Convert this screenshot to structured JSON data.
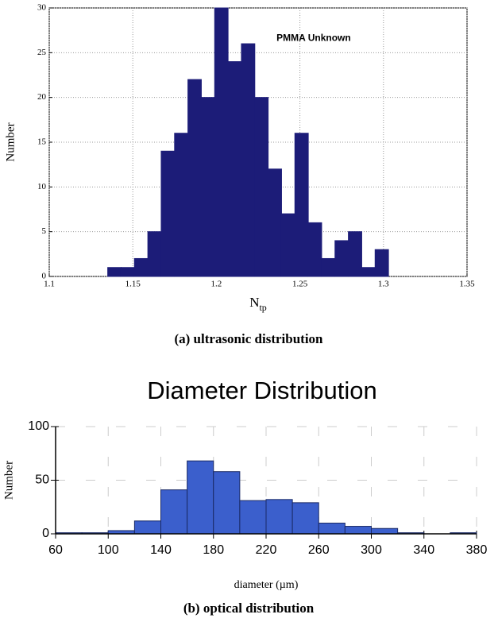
{
  "chart_data": [
    {
      "type": "histogram",
      "annotation": "PMMA Unknown",
      "x_label": "N",
      "x_label_subscript": "tp",
      "y_label": "Number",
      "caption": "(a) ultrasonic distribution",
      "bins": [
        1.135,
        1.143,
        1.151,
        1.159,
        1.167,
        1.175,
        1.183,
        1.191,
        1.199,
        1.207,
        1.215,
        1.223,
        1.231,
        1.239,
        1.247,
        1.255,
        1.263,
        1.271,
        1.279,
        1.287,
        1.295,
        1.303
      ],
      "values": [
        1,
        1,
        2,
        5,
        14,
        16,
        22,
        20,
        30,
        24,
        26,
        20,
        12,
        7,
        16,
        6,
        2,
        4,
        5,
        1,
        3
      ],
      "color": "#1c1c78",
      "xlim": [
        1.1,
        1.35
      ],
      "xticks": [
        1.1,
        1.15,
        1.2,
        1.25,
        1.3,
        1.35
      ],
      "ylim": [
        0,
        30
      ],
      "yticks": [
        0,
        5,
        10,
        15,
        20,
        25,
        30
      ],
      "grid": true
    },
    {
      "type": "histogram",
      "title": "Diameter Distribution",
      "x_label": "diameter (µm)",
      "y_label": "Number",
      "caption": "(b) optical distribution",
      "bins": [
        60,
        80,
        100,
        120,
        140,
        160,
        180,
        200,
        220,
        240,
        260,
        280,
        300,
        320,
        340,
        360,
        380
      ],
      "values": [
        1,
        1,
        3,
        12,
        41,
        68,
        58,
        31,
        32,
        29,
        10,
        7,
        5,
        1,
        0,
        1
      ],
      "color": "#3b5fcc",
      "xlim": [
        60,
        380
      ],
      "xticks": [
        60,
        100,
        140,
        180,
        220,
        260,
        300,
        340,
        380
      ],
      "ylim": [
        0,
        100
      ],
      "yticks": [
        0,
        50,
        100
      ],
      "grid": true
    }
  ]
}
